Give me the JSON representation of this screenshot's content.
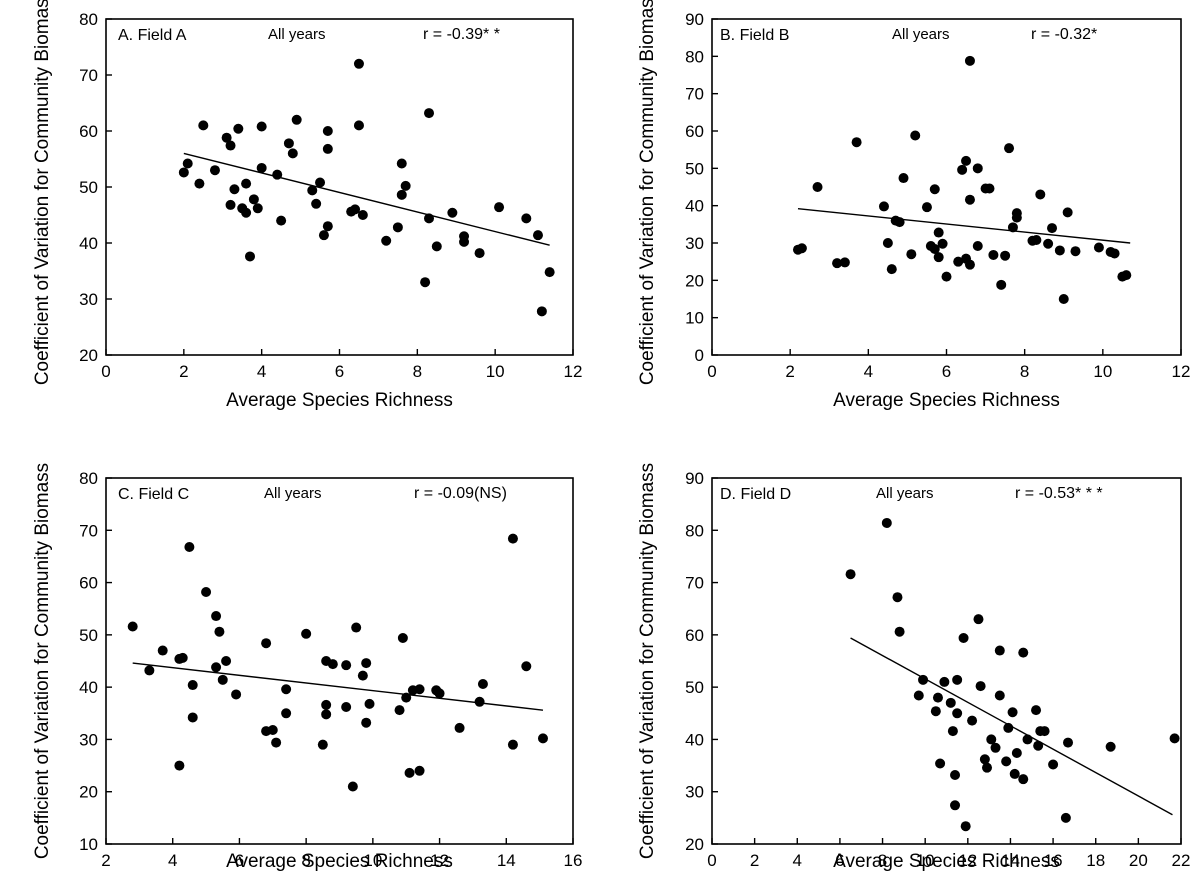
{
  "chart_data": [
    {
      "type": "scatter",
      "panel_label": "A. Field A",
      "subtitle": "All years",
      "stat_label": "r = -0.39* *",
      "xlabel": "Average Species Richness",
      "ylabel": "Coefficient of Variation for Community Biomass",
      "xlim": [
        0,
        12
      ],
      "ylim": [
        20,
        80
      ],
      "xticks": [
        0,
        2,
        4,
        6,
        8,
        10,
        12
      ],
      "yticks": [
        20,
        30,
        40,
        50,
        60,
        70,
        80
      ],
      "fit_line": [
        [
          2.0,
          56.0
        ],
        [
          11.4,
          39.6
        ]
      ],
      "points": [
        [
          2.0,
          52.6
        ],
        [
          2.1,
          54.2
        ],
        [
          2.4,
          50.6
        ],
        [
          2.5,
          61.0
        ],
        [
          2.8,
          53.0
        ],
        [
          3.1,
          58.8
        ],
        [
          3.2,
          57.4
        ],
        [
          3.2,
          46.8
        ],
        [
          3.3,
          49.6
        ],
        [
          3.4,
          60.4
        ],
        [
          3.5,
          46.2
        ],
        [
          3.6,
          50.6
        ],
        [
          3.6,
          45.4
        ],
        [
          3.7,
          37.6
        ],
        [
          3.8,
          47.8
        ],
        [
          3.9,
          46.2
        ],
        [
          4.0,
          53.4
        ],
        [
          4.0,
          60.8
        ],
        [
          4.4,
          52.2
        ],
        [
          4.5,
          44.0
        ],
        [
          4.7,
          57.8
        ],
        [
          4.8,
          56.0
        ],
        [
          4.9,
          62.0
        ],
        [
          5.3,
          49.4
        ],
        [
          5.4,
          47.0
        ],
        [
          5.5,
          50.8
        ],
        [
          5.6,
          41.4
        ],
        [
          5.7,
          43.0
        ],
        [
          5.7,
          56.8
        ],
        [
          5.7,
          60.0
        ],
        [
          6.3,
          45.6
        ],
        [
          6.4,
          46.0
        ],
        [
          6.5,
          72.0
        ],
        [
          6.5,
          61.0
        ],
        [
          6.6,
          45.0
        ],
        [
          7.2,
          40.4
        ],
        [
          7.5,
          42.8
        ],
        [
          7.6,
          54.2
        ],
        [
          7.6,
          48.6
        ],
        [
          7.7,
          50.2
        ],
        [
          8.2,
          33.0
        ],
        [
          8.3,
          44.4
        ],
        [
          8.3,
          63.2
        ],
        [
          8.5,
          39.4
        ],
        [
          8.9,
          45.4
        ],
        [
          9.2,
          41.2
        ],
        [
          9.2,
          40.2
        ],
        [
          9.6,
          38.2
        ],
        [
          10.1,
          46.4
        ],
        [
          10.8,
          44.4
        ],
        [
          11.1,
          41.4
        ],
        [
          11.2,
          27.8
        ],
        [
          11.4,
          34.8
        ]
      ]
    },
    {
      "type": "scatter",
      "panel_label": "B. Field B",
      "subtitle": "All years",
      "stat_label": "r = -0.32*",
      "xlabel": "Average Species Richness",
      "ylabel": "Coefficient of Variation for Community Biomass",
      "xlim": [
        0,
        12
      ],
      "ylim": [
        0,
        90
      ],
      "xticks": [
        0,
        2,
        4,
        6,
        8,
        10,
        12
      ],
      "yticks": [
        0,
        10,
        20,
        30,
        40,
        50,
        60,
        70,
        80,
        90
      ],
      "fit_line": [
        [
          2.2,
          39.2
        ],
        [
          10.7,
          30.0
        ]
      ],
      "points": [
        [
          2.2,
          28.2
        ],
        [
          2.3,
          28.6
        ],
        [
          2.7,
          45.0
        ],
        [
          3.2,
          24.6
        ],
        [
          3.4,
          24.8
        ],
        [
          3.7,
          57.0
        ],
        [
          4.4,
          39.8
        ],
        [
          4.5,
          30.0
        ],
        [
          4.6,
          23.0
        ],
        [
          4.7,
          36.0
        ],
        [
          4.8,
          35.6
        ],
        [
          4.9,
          47.4
        ],
        [
          5.1,
          27.0
        ],
        [
          5.2,
          58.8
        ],
        [
          5.5,
          39.6
        ],
        [
          5.6,
          29.2
        ],
        [
          5.7,
          28.4
        ],
        [
          5.7,
          44.4
        ],
        [
          5.8,
          26.2
        ],
        [
          5.8,
          32.8
        ],
        [
          5.9,
          29.8
        ],
        [
          6.0,
          21.0
        ],
        [
          6.3,
          25.0
        ],
        [
          6.4,
          49.6
        ],
        [
          6.5,
          52.0
        ],
        [
          6.5,
          25.8
        ],
        [
          6.6,
          78.8
        ],
        [
          6.6,
          24.2
        ],
        [
          6.6,
          41.6
        ],
        [
          6.8,
          50.0
        ],
        [
          6.8,
          29.2
        ],
        [
          7.0,
          44.6
        ],
        [
          7.1,
          44.6
        ],
        [
          7.2,
          26.8
        ],
        [
          7.4,
          18.8
        ],
        [
          7.5,
          26.6
        ],
        [
          7.6,
          55.4
        ],
        [
          7.7,
          34.2
        ],
        [
          7.8,
          36.8
        ],
        [
          7.8,
          38.0
        ],
        [
          8.2,
          30.6
        ],
        [
          8.3,
          30.8
        ],
        [
          8.4,
          43.0
        ],
        [
          8.6,
          29.8
        ],
        [
          8.7,
          34.0
        ],
        [
          8.9,
          28.0
        ],
        [
          9.0,
          15.0
        ],
        [
          9.1,
          38.2
        ],
        [
          9.3,
          27.8
        ],
        [
          9.9,
          28.8
        ],
        [
          10.2,
          27.6
        ],
        [
          10.3,
          27.2
        ],
        [
          10.5,
          21.0
        ],
        [
          10.6,
          21.4
        ]
      ]
    },
    {
      "type": "scatter",
      "panel_label": "C. Field C",
      "subtitle": "All years",
      "stat_label": "r = -0.09(NS)",
      "xlabel": "Average Species Richness",
      "ylabel": "Coefficient of Variation for Community Biomass",
      "xlim": [
        2,
        16
      ],
      "ylim": [
        10,
        80
      ],
      "xticks": [
        2,
        4,
        6,
        8,
        10,
        12,
        14,
        16
      ],
      "yticks": [
        10,
        20,
        30,
        40,
        50,
        60,
        70,
        80
      ],
      "fit_line": [
        [
          2.8,
          44.6
        ],
        [
          15.1,
          35.6
        ]
      ],
      "points": [
        [
          2.8,
          51.6
        ],
        [
          3.3,
          43.2
        ],
        [
          3.7,
          47.0
        ],
        [
          4.2,
          45.4
        ],
        [
          4.2,
          25.0
        ],
        [
          4.3,
          45.6
        ],
        [
          4.5,
          66.8
        ],
        [
          4.6,
          40.4
        ],
        [
          4.6,
          34.2
        ],
        [
          5.0,
          58.2
        ],
        [
          5.3,
          53.6
        ],
        [
          5.3,
          43.8
        ],
        [
          5.4,
          50.6
        ],
        [
          5.5,
          41.4
        ],
        [
          5.6,
          45.0
        ],
        [
          5.9,
          38.6
        ],
        [
          6.8,
          48.4
        ],
        [
          6.8,
          31.6
        ],
        [
          7.0,
          31.8
        ],
        [
          7.1,
          29.4
        ],
        [
          7.4,
          39.6
        ],
        [
          7.4,
          35.0
        ],
        [
          8.0,
          50.2
        ],
        [
          8.5,
          29.0
        ],
        [
          8.6,
          45.0
        ],
        [
          8.6,
          36.6
        ],
        [
          8.6,
          34.8
        ],
        [
          8.8,
          44.4
        ],
        [
          9.2,
          36.2
        ],
        [
          9.2,
          44.2
        ],
        [
          9.4,
          21.0
        ],
        [
          9.5,
          51.4
        ],
        [
          9.7,
          42.2
        ],
        [
          9.8,
          33.2
        ],
        [
          9.8,
          44.6
        ],
        [
          9.9,
          36.8
        ],
        [
          10.8,
          35.6
        ],
        [
          10.9,
          49.4
        ],
        [
          11.0,
          38.0
        ],
        [
          11.1,
          23.6
        ],
        [
          11.2,
          39.4
        ],
        [
          11.4,
          24.0
        ],
        [
          11.4,
          39.6
        ],
        [
          11.9,
          39.4
        ],
        [
          12.0,
          38.8
        ],
        [
          12.6,
          32.2
        ],
        [
          13.2,
          37.2
        ],
        [
          13.3,
          40.6
        ],
        [
          14.2,
          68.4
        ],
        [
          14.2,
          29.0
        ],
        [
          14.6,
          44.0
        ],
        [
          15.1,
          30.2
        ]
      ]
    },
    {
      "type": "scatter",
      "panel_label": "D. Field D",
      "subtitle": "All years",
      "stat_label": "r = -0.53* * *",
      "xlabel": "Average Species Richness",
      "ylabel": "Coefficient of Variation for Community Biomass",
      "xlim": [
        0,
        22
      ],
      "ylim": [
        20,
        90
      ],
      "xticks": [
        0,
        2,
        4,
        6,
        8,
        10,
        12,
        14,
        16,
        18,
        20,
        22
      ],
      "yticks": [
        20,
        30,
        40,
        50,
        60,
        70,
        80,
        90
      ],
      "fit_line": [
        [
          6.5,
          59.4
        ],
        [
          21.6,
          25.6
        ]
      ],
      "points": [
        [
          6.5,
          71.6
        ],
        [
          8.2,
          81.4
        ],
        [
          8.7,
          67.2
        ],
        [
          8.8,
          60.6
        ],
        [
          9.7,
          48.4
        ],
        [
          9.9,
          51.4
        ],
        [
          10.5,
          45.4
        ],
        [
          10.6,
          48.0
        ],
        [
          10.7,
          35.4
        ],
        [
          10.9,
          51.0
        ],
        [
          11.2,
          47.0
        ],
        [
          11.3,
          41.6
        ],
        [
          11.4,
          27.4
        ],
        [
          11.4,
          33.2
        ],
        [
          11.5,
          51.4
        ],
        [
          11.5,
          45.0
        ],
        [
          11.8,
          59.4
        ],
        [
          11.9,
          23.4
        ],
        [
          12.2,
          43.6
        ],
        [
          12.5,
          63.0
        ],
        [
          12.6,
          50.2
        ],
        [
          12.8,
          36.2
        ],
        [
          12.9,
          34.6
        ],
        [
          13.1,
          40.0
        ],
        [
          13.3,
          38.4
        ],
        [
          13.5,
          48.4
        ],
        [
          13.5,
          57.0
        ],
        [
          13.8,
          35.8
        ],
        [
          13.9,
          42.2
        ],
        [
          14.1,
          45.2
        ],
        [
          14.2,
          33.4
        ],
        [
          14.3,
          37.4
        ],
        [
          14.6,
          32.4
        ],
        [
          14.6,
          56.6
        ],
        [
          14.8,
          40.0
        ],
        [
          15.2,
          45.6
        ],
        [
          15.3,
          38.8
        ],
        [
          15.4,
          41.6
        ],
        [
          15.6,
          41.6
        ],
        [
          16.0,
          35.2
        ],
        [
          16.6,
          25.0
        ],
        [
          16.7,
          39.4
        ],
        [
          18.7,
          38.6
        ],
        [
          21.7,
          40.2
        ]
      ]
    }
  ]
}
